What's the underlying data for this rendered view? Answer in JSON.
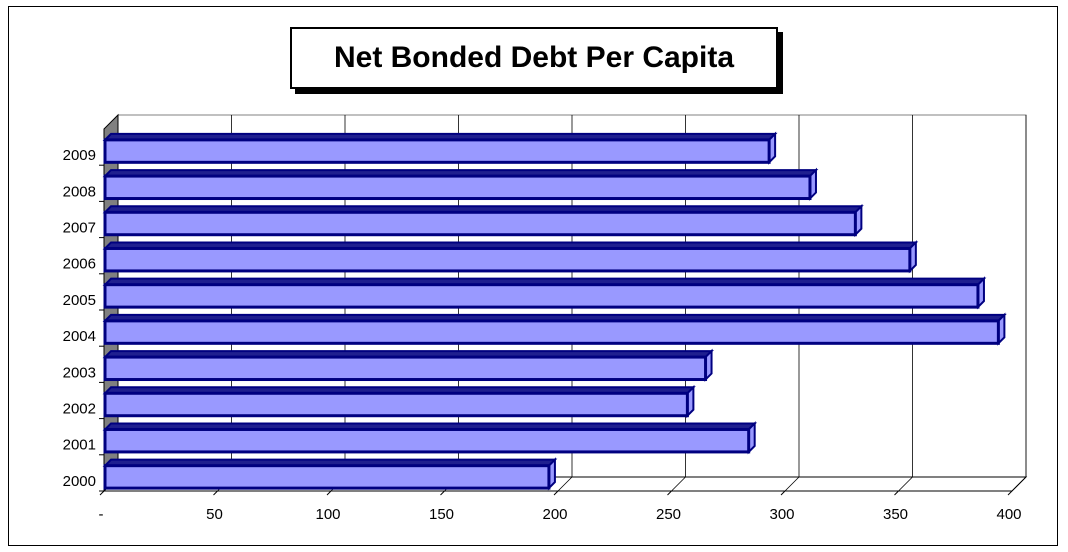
{
  "chart_data": {
    "type": "bar",
    "orientation": "horizontal",
    "style": "3d",
    "title": "Net Bonded Debt Per Capita",
    "categories": [
      "2000",
      "2001",
      "2002",
      "2003",
      "2004",
      "2005",
      "2006",
      "2007",
      "2008",
      "2009"
    ],
    "values": [
      196,
      284,
      257,
      265,
      394,
      385,
      355,
      331,
      311,
      293
    ],
    "x_ticks": [
      "-",
      "50",
      "100",
      "150",
      "200",
      "250",
      "300",
      "350",
      "400"
    ],
    "xlim": [
      0,
      400
    ],
    "grid": true,
    "legend": "none",
    "colors": {
      "bar_face": "#9999ff",
      "bar_edge": "#000080",
      "bar_side": "#1f1f8f",
      "wall": "#ffffff",
      "side_wall": "#808080",
      "gridline": "#000000"
    }
  }
}
